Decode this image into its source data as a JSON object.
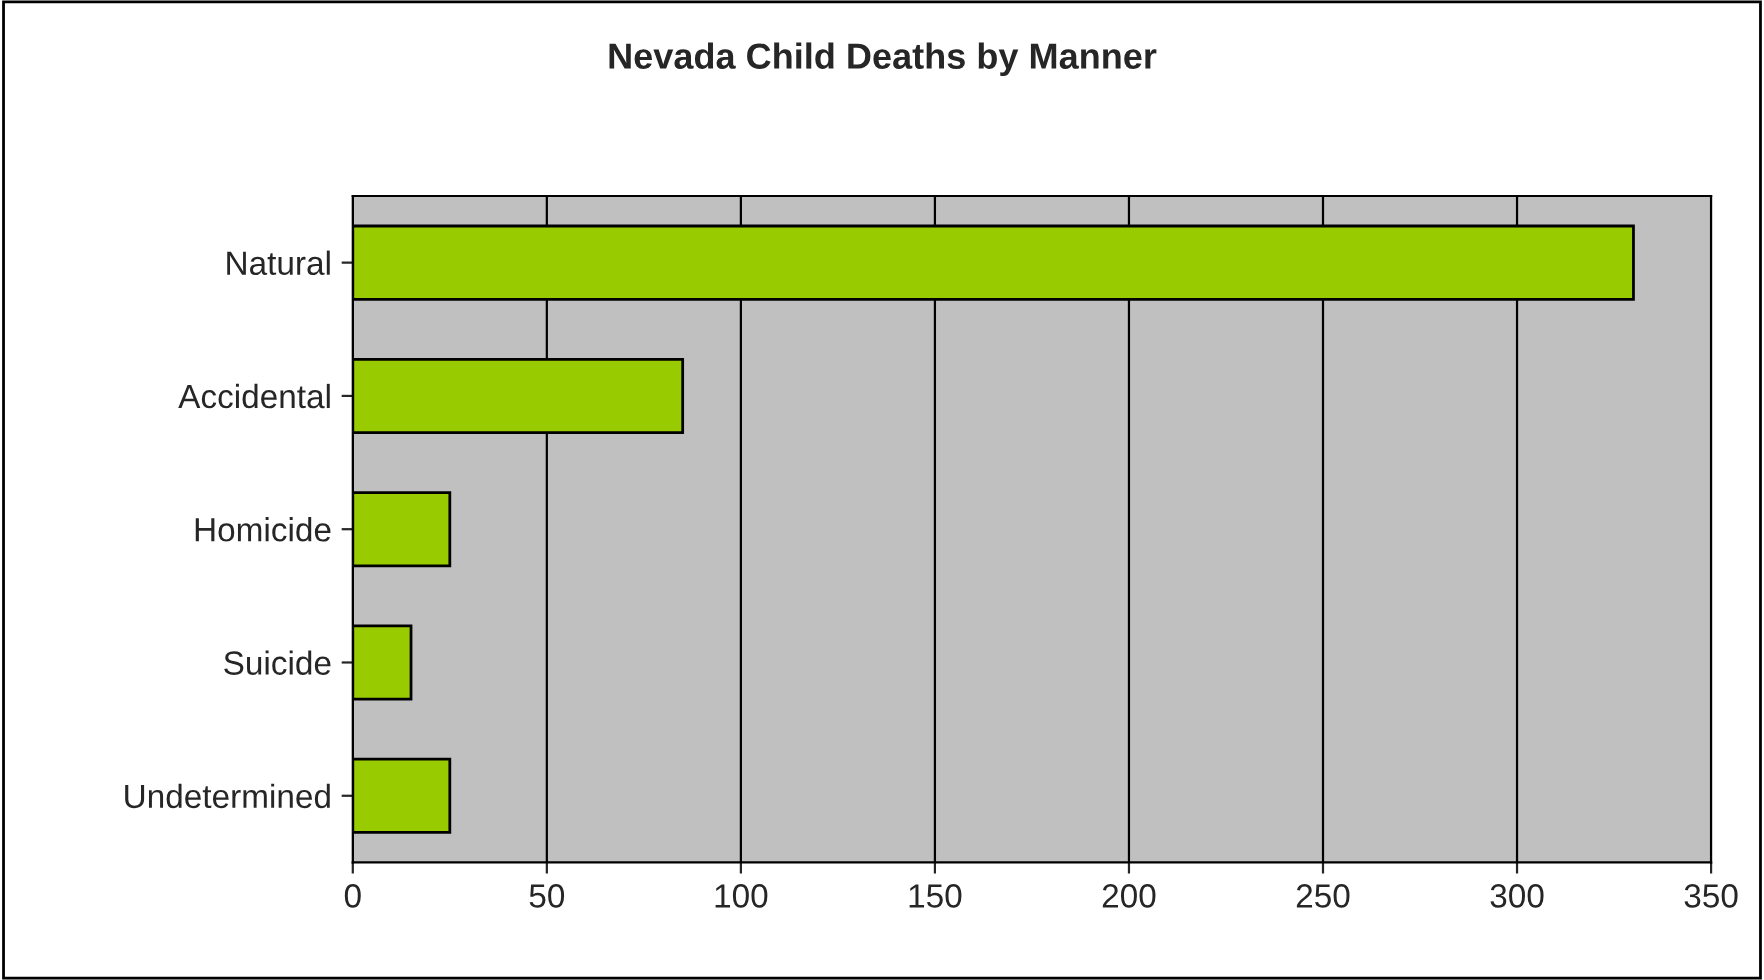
{
  "chart_data": {
    "type": "bar",
    "orientation": "horizontal",
    "title": "Nevada Child Deaths by Manner",
    "categories": [
      "Natural",
      "Accidental",
      "Homicide",
      "Suicide",
      "Undetermined"
    ],
    "values": [
      330,
      85,
      25,
      15,
      25
    ],
    "color": "#99cc00",
    "xlim": [
      0,
      350
    ],
    "xticks": [
      0,
      50,
      100,
      150,
      200,
      250,
      300,
      350
    ],
    "grid": "x"
  }
}
